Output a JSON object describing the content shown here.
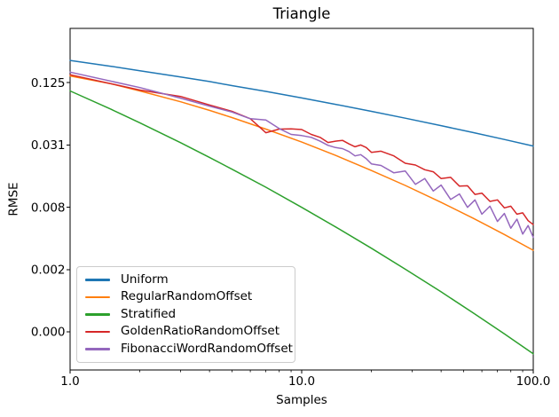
{
  "figure": {
    "title": "Triangle",
    "background": "#ffffff"
  },
  "axes": {
    "xlabel": "Samples",
    "ylabel": "RMSE",
    "x_tick_labels": [
      "1.0",
      "10.0",
      "100.0"
    ],
    "y_tick_labels": [
      "0.125",
      "0.031",
      "0.008",
      "0.002",
      "0.000"
    ],
    "spine_color": "#000000",
    "text_color": "#000000"
  },
  "legend": {
    "border_color": "#cccccc",
    "background": "rgba(255,255,255,0.9)",
    "position": "lower left"
  },
  "chart_data": {
    "type": "line",
    "title": "Triangle",
    "xlabel": "Samples",
    "ylabel": "RMSE",
    "x_scale": "log10",
    "y_scale": "log2",
    "xlim": [
      1,
      100
    ],
    "ylim": [
      0.000209,
      0.418
    ],
    "x_major_ticks": [
      1,
      10,
      100
    ],
    "x_minor_ticks": [
      2,
      3,
      4,
      5,
      6,
      7,
      8,
      9,
      20,
      30,
      40,
      50,
      60,
      70,
      80,
      90
    ],
    "y_major_ticks": [
      0.125,
      0.03125,
      0.0078125,
      0.001953125,
      0.00048828125
    ],
    "grid": false,
    "legend_position": "lower left",
    "series": [
      {
        "name": "Uniform",
        "color": "#1f77b4",
        "x": [
          1,
          1.5,
          2,
          3,
          4,
          5,
          7,
          10,
          14,
          20,
          28,
          40,
          55,
          75,
          100
        ],
        "y": [
          0.205,
          0.18,
          0.163,
          0.142,
          0.128,
          0.117,
          0.103,
          0.089,
          0.0772,
          0.066,
          0.0567,
          0.048,
          0.0412,
          0.0353,
          0.0305
        ]
      },
      {
        "name": "RegularRandomOffset",
        "color": "#ff7f0e",
        "x": [
          1,
          1.5,
          2,
          3,
          4,
          5,
          7,
          10,
          14,
          20,
          28,
          40,
          55,
          75,
          100
        ],
        "y": [
          0.145,
          0.122,
          0.104,
          0.0816,
          0.0674,
          0.0575,
          0.0445,
          0.0333,
          0.0248,
          0.0177,
          0.0127,
          0.00871,
          0.00612,
          0.00426,
          0.003
        ]
      },
      {
        "name": "Stratified",
        "color": "#2ca02c",
        "x": [
          1,
          1.5,
          2,
          3,
          4,
          5,
          7,
          10,
          14,
          20,
          28,
          40,
          55,
          75,
          100
        ],
        "y": [
          0.104,
          0.0692,
          0.0512,
          0.0329,
          0.0237,
          0.0182,
          0.0122,
          0.0078,
          0.00505,
          0.00314,
          0.00197,
          0.00119,
          0.000746,
          0.000467,
          0.0003
        ]
      },
      {
        "name": "GoldenRatioRandomOffset",
        "color": "#d62728",
        "x": [
          1,
          2,
          3,
          4,
          5,
          6,
          7,
          8,
          9,
          10,
          11,
          12,
          13,
          14,
          15,
          16,
          17,
          18,
          19,
          20,
          22,
          25,
          28,
          31,
          34,
          37,
          40,
          44,
          48,
          52,
          56,
          60,
          65,
          70,
          75,
          80,
          85,
          90,
          95,
          100
        ],
        "y": [
          0.149,
          0.106,
          0.092,
          0.076,
          0.066,
          0.056,
          0.041,
          0.0445,
          0.0447,
          0.044,
          0.0395,
          0.037,
          0.033,
          0.034,
          0.0346,
          0.032,
          0.03,
          0.0312,
          0.0295,
          0.0265,
          0.0272,
          0.0245,
          0.0208,
          0.02,
          0.018,
          0.0172,
          0.0148,
          0.0152,
          0.0125,
          0.0126,
          0.0104,
          0.0107,
          0.0089,
          0.0092,
          0.0077,
          0.008,
          0.0067,
          0.0069,
          0.0058,
          0.0053
        ]
      },
      {
        "name": "FibonacciWordRandomOffset",
        "color": "#9467bd",
        "x": [
          1,
          2,
          3,
          4,
          5,
          6,
          7,
          8,
          9,
          10,
          11,
          12,
          13,
          14,
          15,
          16,
          17,
          18,
          19,
          20,
          22,
          25,
          28,
          31,
          34,
          37,
          40,
          44,
          48,
          52,
          56,
          60,
          65,
          70,
          75,
          80,
          85,
          90,
          95,
          100
        ],
        "y": [
          0.158,
          0.112,
          0.0886,
          0.074,
          0.065,
          0.056,
          0.0545,
          0.045,
          0.0395,
          0.0385,
          0.037,
          0.034,
          0.031,
          0.0295,
          0.0288,
          0.027,
          0.0245,
          0.0252,
          0.023,
          0.0205,
          0.0198,
          0.0168,
          0.0175,
          0.013,
          0.0148,
          0.0112,
          0.0128,
          0.0093,
          0.0105,
          0.0078,
          0.0092,
          0.0067,
          0.008,
          0.0057,
          0.0068,
          0.0049,
          0.006,
          0.0043,
          0.0052,
          0.004
        ]
      }
    ]
  }
}
